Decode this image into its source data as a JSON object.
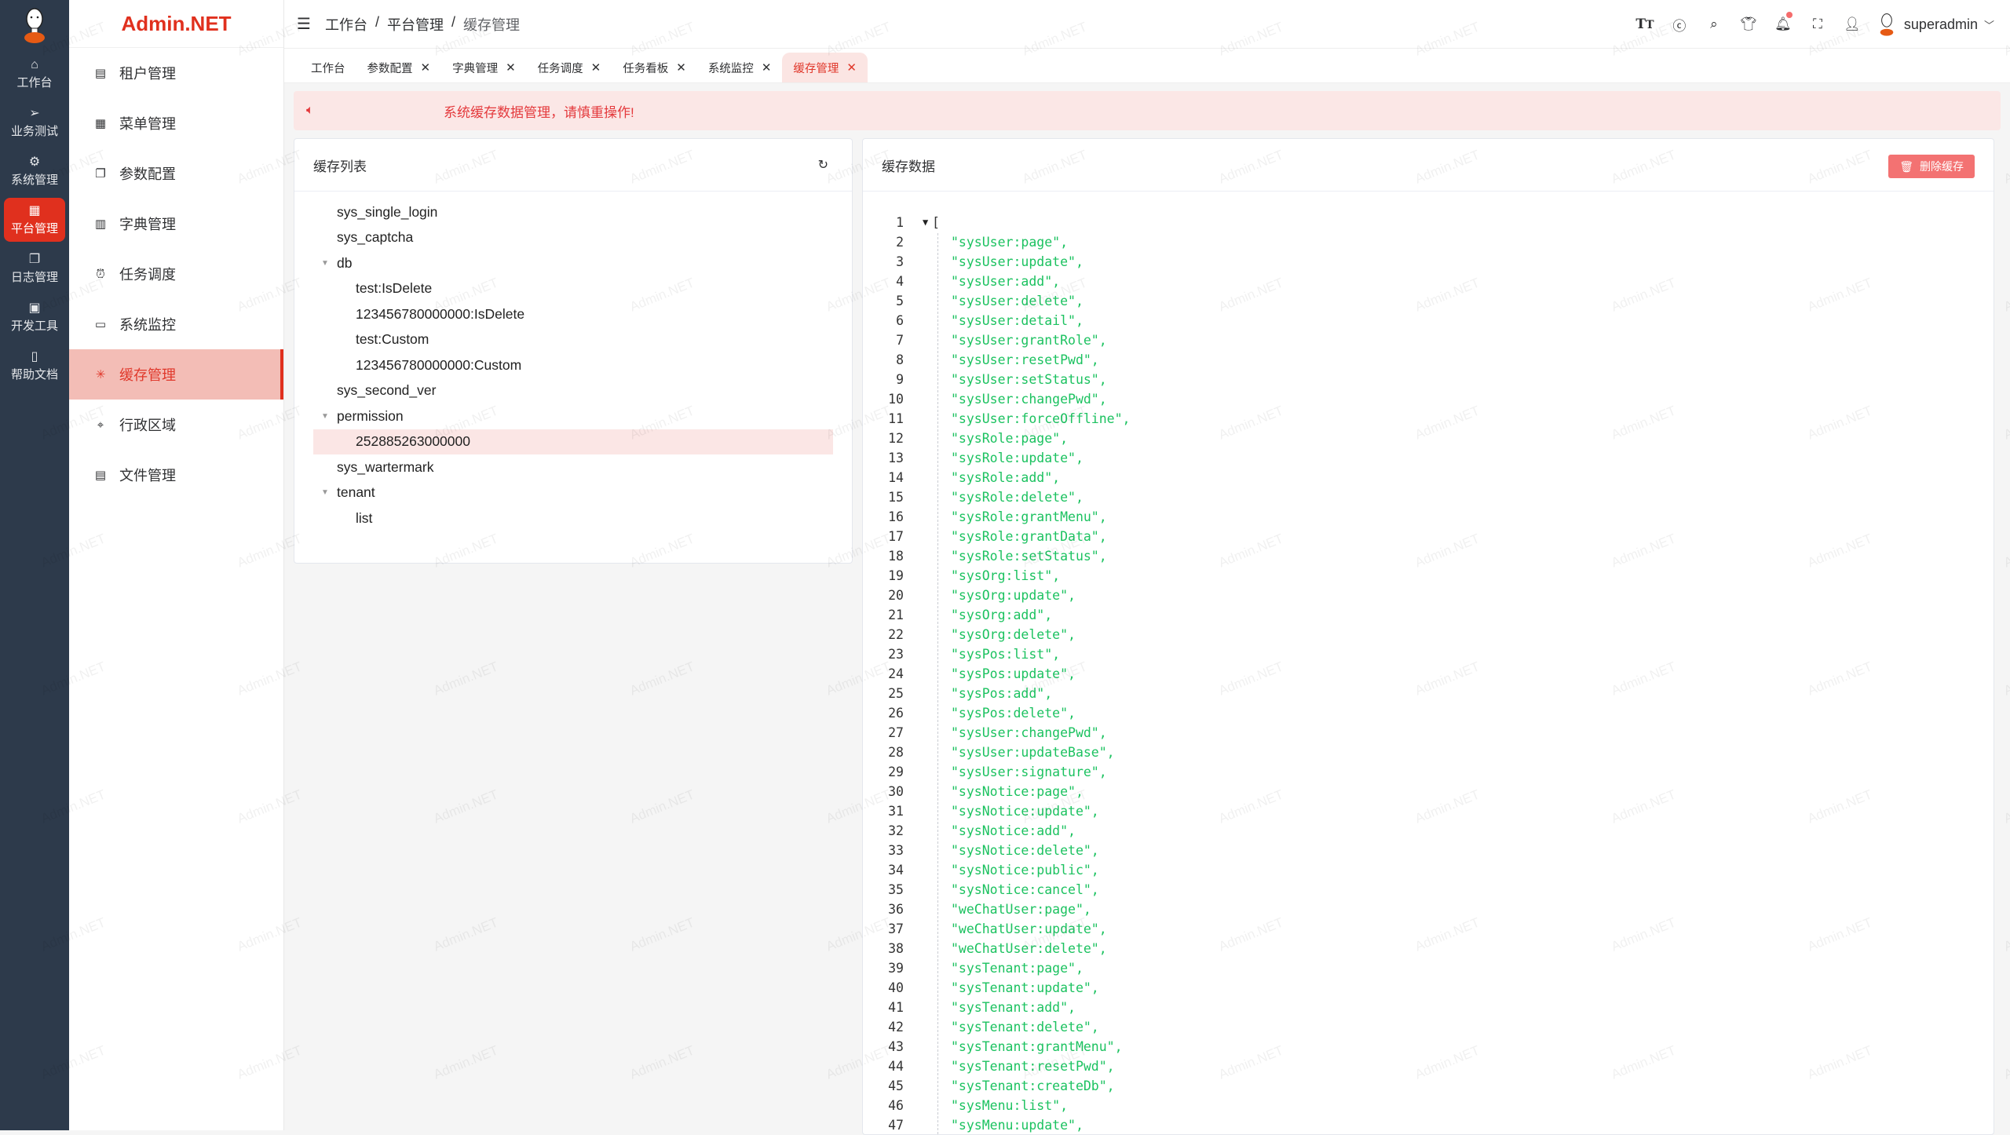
{
  "brand": "Admin.NET",
  "watermark": "Admin.NET",
  "colors": {
    "accent": "#e0301e",
    "json_string": "#1cc260",
    "alert_bg": "#fbe7e6",
    "rail_bg": "#2d3a4b"
  },
  "rail": [
    {
      "label": "工作台",
      "icon": "home-icon"
    },
    {
      "label": "业务测试",
      "icon": "send-icon"
    },
    {
      "label": "系统管理",
      "icon": "gear-icon"
    },
    {
      "label": "平台管理",
      "icon": "grid-icon",
      "active": true
    },
    {
      "label": "日志管理",
      "icon": "copy-icon"
    },
    {
      "label": "开发工具",
      "icon": "cpu-icon"
    },
    {
      "label": "帮助文档",
      "icon": "notebook-icon"
    }
  ],
  "menu": [
    {
      "label": "租户管理",
      "icon": "building-icon"
    },
    {
      "label": "菜单管理",
      "icon": "grid-icon"
    },
    {
      "label": "参数配置",
      "icon": "copy-icon"
    },
    {
      "label": "字典管理",
      "icon": "book-icon"
    },
    {
      "label": "任务调度",
      "icon": "alarm-clock-icon"
    },
    {
      "label": "系统监控",
      "icon": "monitor-icon"
    },
    {
      "label": "缓存管理",
      "icon": "loading-icon",
      "active": true
    },
    {
      "label": "行政区域",
      "icon": "location-icon"
    },
    {
      "label": "文件管理",
      "icon": "document-icon"
    }
  ],
  "breadcrumb": [
    "工作台",
    "平台管理",
    "缓存管理"
  ],
  "breadcrumb_sep": "/",
  "user": {
    "name": "superadmin"
  },
  "tabs": [
    {
      "label": "工作台",
      "closable": false
    },
    {
      "label": "参数配置",
      "closable": true
    },
    {
      "label": "字典管理",
      "closable": true
    },
    {
      "label": "任务调度",
      "closable": true
    },
    {
      "label": "任务看板",
      "closable": true
    },
    {
      "label": "系统监控",
      "closable": true
    },
    {
      "label": "缓存管理",
      "closable": true,
      "active": true
    }
  ],
  "alert": "系统缓存数据管理，请慎重操作!",
  "cache_list": {
    "title": "缓存列表",
    "nodes": [
      {
        "label": "sys_single_login",
        "level": 0
      },
      {
        "label": "sys_captcha",
        "level": 0
      },
      {
        "label": "db",
        "level": 0,
        "expanded": true
      },
      {
        "label": "test:IsDelete",
        "level": 1
      },
      {
        "label": "123456780000000:IsDelete",
        "level": 1
      },
      {
        "label": "test:Custom",
        "level": 1
      },
      {
        "label": "123456780000000:Custom",
        "level": 1
      },
      {
        "label": "sys_second_ver",
        "level": 0
      },
      {
        "label": "permission",
        "level": 0,
        "expanded": true
      },
      {
        "label": "252885263000000",
        "level": 1,
        "selected": true
      },
      {
        "label": "sys_wartermark",
        "level": 0
      },
      {
        "label": "tenant",
        "level": 0,
        "expanded": true
      },
      {
        "label": "list",
        "level": 1
      }
    ]
  },
  "cache_data": {
    "title": "缓存数据",
    "delete_label": "删除缓存",
    "lines": [
      "[",
      "\"sysUser:page\",",
      "\"sysUser:update\",",
      "\"sysUser:add\",",
      "\"sysUser:delete\",",
      "\"sysUser:detail\",",
      "\"sysUser:grantRole\",",
      "\"sysUser:resetPwd\",",
      "\"sysUser:setStatus\",",
      "\"sysUser:changePwd\",",
      "\"sysUser:forceOffline\",",
      "\"sysRole:page\",",
      "\"sysRole:update\",",
      "\"sysRole:add\",",
      "\"sysRole:delete\",",
      "\"sysRole:grantMenu\",",
      "\"sysRole:grantData\",",
      "\"sysRole:setStatus\",",
      "\"sysOrg:list\",",
      "\"sysOrg:update\",",
      "\"sysOrg:add\",",
      "\"sysOrg:delete\",",
      "\"sysPos:list\",",
      "\"sysPos:update\",",
      "\"sysPos:add\",",
      "\"sysPos:delete\",",
      "\"sysUser:changePwd\",",
      "\"sysUser:updateBase\",",
      "\"sysUser:signature\",",
      "\"sysNotice:page\",",
      "\"sysNotice:update\",",
      "\"sysNotice:add\",",
      "\"sysNotice:delete\",",
      "\"sysNotice:public\",",
      "\"sysNotice:cancel\",",
      "\"weChatUser:page\",",
      "\"weChatUser:update\",",
      "\"weChatUser:delete\",",
      "\"sysTenant:page\",",
      "\"sysTenant:update\",",
      "\"sysTenant:add\",",
      "\"sysTenant:delete\",",
      "\"sysTenant:grantMenu\",",
      "\"sysTenant:resetPwd\",",
      "\"sysTenant:createDb\",",
      "\"sysMenu:list\",",
      "\"sysMenu:update\","
    ]
  }
}
